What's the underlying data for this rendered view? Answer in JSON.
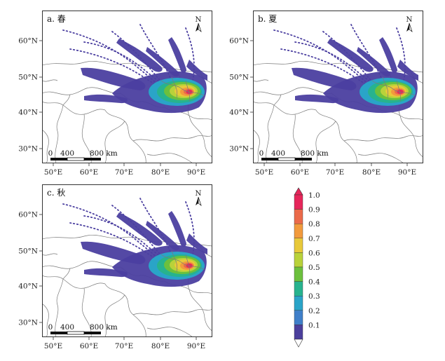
{
  "panels": [
    {
      "id": "spring",
      "label": "a. 春"
    },
    {
      "id": "summer",
      "label": "b. 夏"
    },
    {
      "id": "autumn",
      "label": "c. 秋"
    }
  ],
  "axes": {
    "lat_ticks": [
      "60°N",
      "50°N",
      "40°N",
      "30°N"
    ],
    "lon_ticks": [
      "50°E",
      "60°E",
      "70°E",
      "80°E",
      "90°E"
    ]
  },
  "north_arrow": "N",
  "scale_bar": {
    "labels": [
      "0",
      "400",
      "800 km"
    ]
  },
  "colorbar": {
    "labels": [
      "1.0",
      "0.9",
      "0.8",
      "0.7",
      "0.6",
      "0.5",
      "0.4",
      "0.3",
      "0.2",
      "0.1"
    ],
    "colors": [
      "#e6265a",
      "#eb6a4a",
      "#f29a3c",
      "#e8c93a",
      "#b9d23a",
      "#6cc03d",
      "#27b38e",
      "#2aa4c8",
      "#3f7fc9",
      "#4b3f9c"
    ]
  },
  "colors": {
    "low": "#4b3fa0",
    "high": "#e6265a",
    "border": "#7a7a7a"
  }
}
